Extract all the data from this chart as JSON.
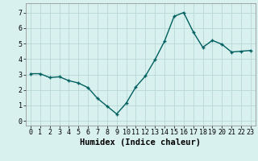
{
  "x": [
    0,
    1,
    2,
    3,
    4,
    5,
    6,
    7,
    8,
    9,
    10,
    11,
    12,
    13,
    14,
    15,
    16,
    17,
    18,
    19,
    20,
    21,
    22,
    23
  ],
  "y": [
    3.05,
    3.05,
    2.8,
    2.85,
    2.6,
    2.45,
    2.15,
    1.45,
    0.95,
    0.45,
    1.15,
    2.2,
    2.9,
    3.95,
    5.15,
    6.75,
    7.0,
    5.75,
    4.75,
    5.2,
    4.95,
    4.45,
    4.5,
    4.55
  ],
  "line_color": "#006060",
  "marker": "+",
  "marker_size": 3,
  "xlabel": "Humidex (Indice chaleur)",
  "xlim": [
    -0.5,
    23.5
  ],
  "ylim": [
    -0.3,
    7.6
  ],
  "yticks": [
    0,
    1,
    2,
    3,
    4,
    5,
    6,
    7
  ],
  "xticks": [
    0,
    1,
    2,
    3,
    4,
    5,
    6,
    7,
    8,
    9,
    10,
    11,
    12,
    13,
    14,
    15,
    16,
    17,
    18,
    19,
    20,
    21,
    22,
    23
  ],
  "background_color": "#d8f0ee",
  "grid_color": "#b8d8d4",
  "line_width": 1.0,
  "tick_fontsize": 6.0,
  "xlabel_fontsize": 7.5
}
